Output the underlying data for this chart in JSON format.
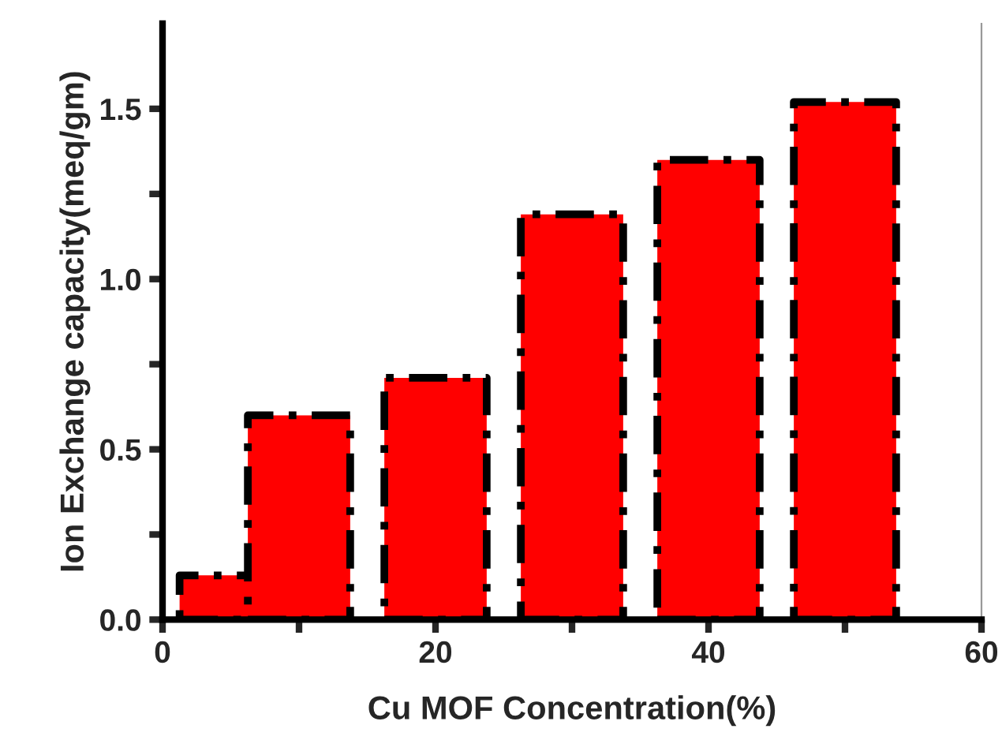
{
  "chart_data": {
    "type": "bar",
    "xlabel": "Cu MOF Concentration(%)",
    "ylabel": "Ion Exchange capacity(meq/gm)",
    "x": [
      5,
      10,
      20,
      30,
      40,
      50
    ],
    "values": [
      0.13,
      0.6,
      0.71,
      1.19,
      1.35,
      1.52
    ],
    "color": "#ff0000",
    "line_style": "dashed",
    "xlim": [
      0,
      60
    ],
    "xticks": [
      0,
      {
        "value": 10,
        "label": null
      },
      20,
      {
        "value": 30,
        "label": null
      },
      40,
      {
        "value": 50,
        "label": null
      },
      60
    ],
    "ylim": [
      0,
      1.75
    ],
    "yticks": [
      "0.0",
      {
        "value": 0.25,
        "label": null
      },
      {
        "value": 0.5,
        "label": "0.5"
      },
      {
        "value": 0.75,
        "label": null
      },
      {
        "value": 1.0,
        "label": "1.0"
      },
      {
        "value": 1.25,
        "label": null
      },
      {
        "value": 1.5,
        "label": "1.5"
      }
    ],
    "grid": false,
    "legend": false
  }
}
